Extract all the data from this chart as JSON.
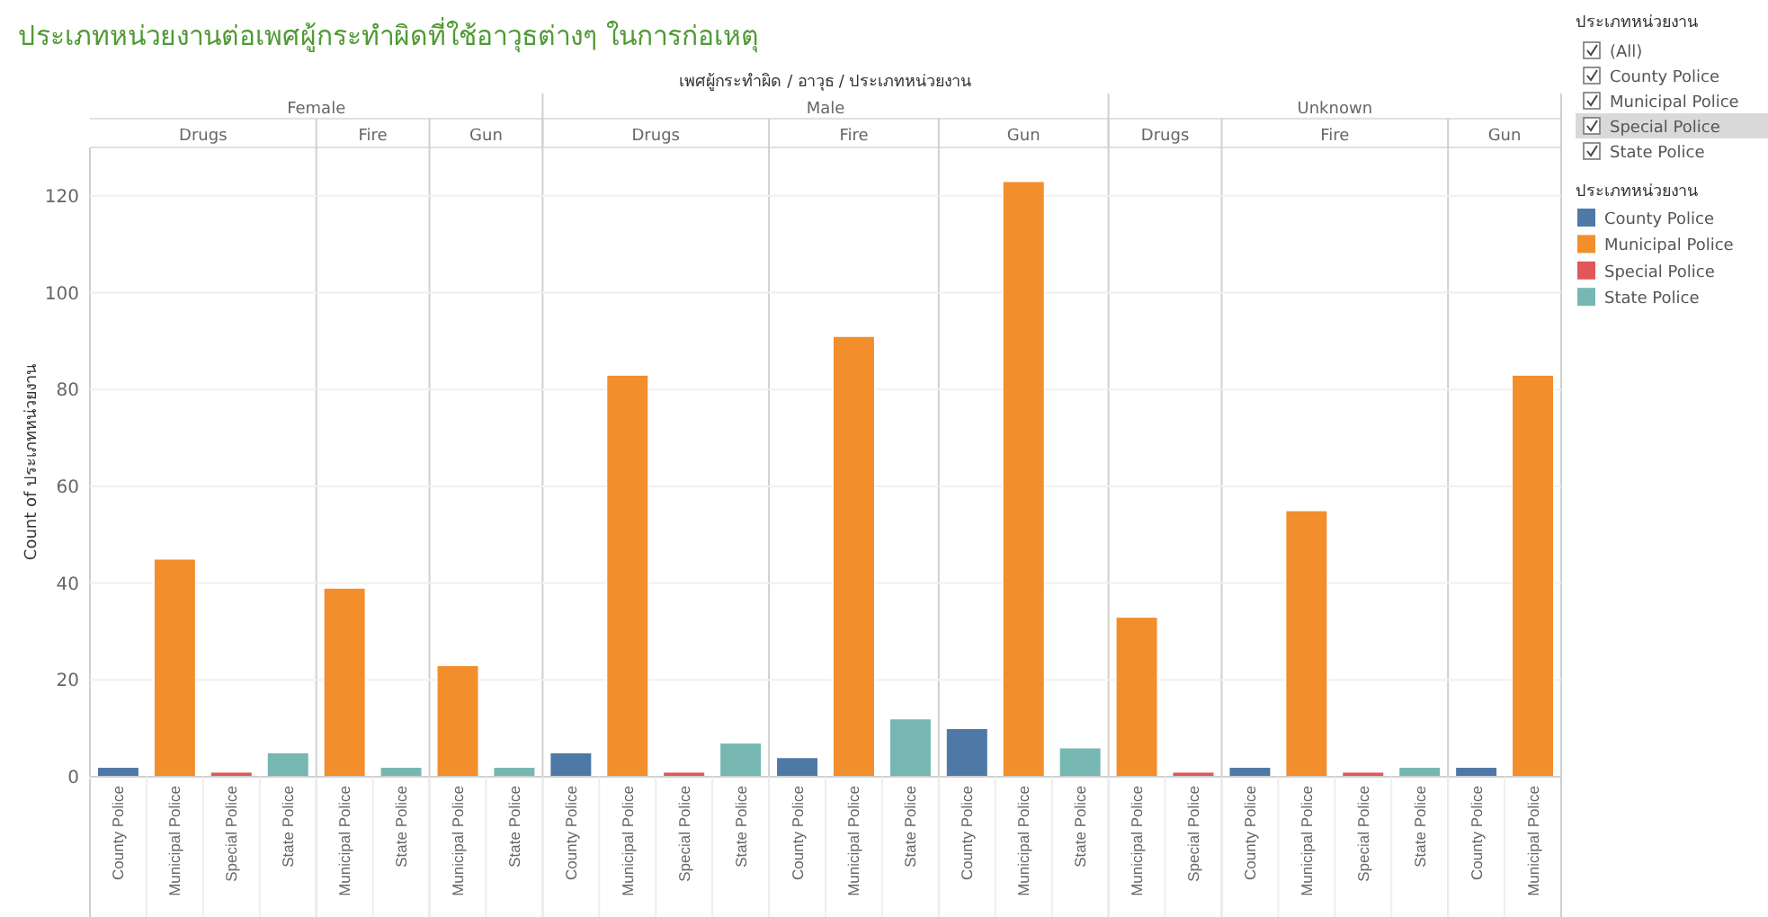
{
  "chart_data": [
    {
      "type": "bar",
      "title": "ประเภทหน่วยงานต่อเพศผู้กระทำผิดที่ใช้อาวุธต่างๆ ในการก่อเหตุ",
      "xlabel": "เพศผู้กระทำผิด / อาวุธ / ประเภทหน่วยงาน",
      "ylabel": "Count of ประเภทหน่วยงาน",
      "legend_title": "ประเภทหน่วยงาน",
      "categories": [
        "County Police",
        "Municipal Police",
        "Special Police",
        "State Police",
        "Municipal Police",
        "State Police",
        "Municipal Police",
        "State Police",
        "County Police",
        "Municipal Police",
        "Special Police",
        "State Police",
        "County Police",
        "Municipal Police",
        "State Police",
        "County Police",
        "Municipal Police",
        "State Police",
        "Municipal Police",
        "Special Police",
        "County Police",
        "Municipal Police",
        "Special Police",
        "State Police",
        "County Police",
        "Municipal Police"
      ],
      "annotations": [
        "Female",
        "Male",
        "Unknown",
        "Drugs",
        "Fire",
        "Gun",
        "Drugs",
        "Fire",
        "Gun",
        "Drugs",
        "Fire",
        "Gun"
      ],
      "series": [
        {
          "name": "County Police",
          "color": "#4e79a7",
          "values": [
            2,
            null,
            null,
            null,
            null,
            null,
            null,
            null,
            5,
            null,
            null,
            null,
            4,
            null,
            null,
            10,
            null,
            null,
            null,
            null,
            2,
            null,
            null,
            null,
            2,
            null
          ]
        },
        {
          "name": "Municipal Police",
          "color": "#f28e2b",
          "values": [
            null,
            45,
            null,
            null,
            39,
            null,
            23,
            null,
            null,
            83,
            null,
            null,
            null,
            91,
            null,
            null,
            123,
            null,
            33,
            null,
            null,
            55,
            null,
            null,
            null,
            83
          ]
        },
        {
          "name": "Special Police",
          "color": "#e15759",
          "values": [
            null,
            null,
            1,
            null,
            null,
            null,
            null,
            null,
            null,
            null,
            1,
            null,
            null,
            null,
            null,
            null,
            null,
            null,
            null,
            1,
            null,
            null,
            1,
            null,
            null,
            null
          ]
        },
        {
          "name": "State Police",
          "color": "#76b7b2",
          "values": [
            null,
            null,
            null,
            5,
            null,
            2,
            null,
            2,
            null,
            null,
            null,
            7,
            null,
            null,
            12,
            null,
            null,
            6,
            null,
            null,
            null,
            null,
            null,
            2,
            null,
            null
          ]
        }
      ],
      "stacked": true,
      "ylim": [
        0,
        130
      ],
      "yticks": [
        0,
        20,
        40,
        60,
        80,
        100,
        120
      ],
      "grid": "y",
      "legend": "right"
    },
    {
      "type": "other",
      "title": "ประเภทหน่วยงาน",
      "categories": [
        "(All)",
        "County Police",
        "Municipal Police",
        "Special Police",
        "State Police"
      ]
    }
  ]
}
